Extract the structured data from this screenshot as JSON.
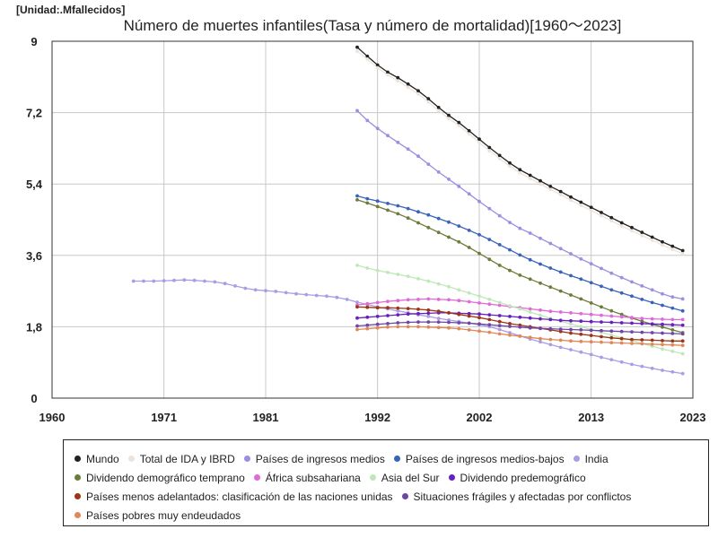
{
  "unit_label": "[Unidad:.Mfallecidos]",
  "chart_data": {
    "type": "line",
    "title": "Número de muertes infantiles(Tasa y número de mortalidad)[1960～2023]",
    "xlabel": "",
    "ylabel": "",
    "xlim": [
      1960,
      2023
    ],
    "ylim": [
      0,
      9
    ],
    "x_ticks": [
      1960,
      1971,
      1981,
      1992,
      2002,
      2013,
      2023
    ],
    "y_ticks": [
      0,
      1.8,
      3.6,
      5.4,
      7.2,
      9
    ],
    "y_tick_labels": [
      "0",
      "1,8",
      "3,6",
      "5,4",
      "7,2",
      "9"
    ],
    "grid": true,
    "legend_position": "bottom",
    "series": [
      {
        "name": "Mundo",
        "color": "#222222",
        "x_start": 1990,
        "x_end": 2022,
        "values": [
          8.85,
          8.62,
          8.4,
          8.22,
          8.08,
          7.92,
          7.75,
          7.55,
          7.33,
          7.13,
          6.95,
          6.74,
          6.53,
          6.32,
          6.12,
          5.93,
          5.76,
          5.62,
          5.48,
          5.34,
          5.21,
          5.07,
          4.94,
          4.81,
          4.68,
          4.55,
          4.42,
          4.3,
          4.18,
          4.06,
          3.94,
          3.83,
          3.72
        ]
      },
      {
        "name": "Total de IDA y IBRD",
        "color": "#ece4dc",
        "x_start": 1990,
        "x_end": 2022,
        "values": [
          8.75,
          8.55,
          8.33,
          8.15,
          8.0,
          7.84,
          7.67,
          7.47,
          7.25,
          7.05,
          6.87,
          6.66,
          6.45,
          6.24,
          6.04,
          5.85,
          5.68,
          5.54,
          5.4,
          5.26,
          5.13,
          4.99,
          4.86,
          4.73,
          4.6,
          4.47,
          4.34,
          4.22,
          4.1,
          3.98,
          3.86,
          3.75,
          3.64
        ]
      },
      {
        "name": "Países de ingresos medios",
        "color": "#9a8fe0",
        "x_start": 1990,
        "x_end": 2022,
        "values": [
          7.25,
          7.0,
          6.8,
          6.62,
          6.45,
          6.28,
          6.1,
          5.9,
          5.7,
          5.52,
          5.34,
          5.15,
          4.96,
          4.78,
          4.6,
          4.43,
          4.28,
          4.16,
          4.03,
          3.9,
          3.77,
          3.64,
          3.51,
          3.39,
          3.27,
          3.15,
          3.04,
          2.93,
          2.83,
          2.73,
          2.63,
          2.55,
          2.5
        ]
      },
      {
        "name": "Países de ingresos medios-bajos",
        "color": "#3a62b8",
        "x_start": 1990,
        "x_end": 2022,
        "values": [
          5.1,
          5.03,
          4.97,
          4.91,
          4.85,
          4.78,
          4.7,
          4.62,
          4.53,
          4.44,
          4.34,
          4.23,
          4.12,
          4.0,
          3.87,
          3.74,
          3.61,
          3.49,
          3.38,
          3.28,
          3.18,
          3.09,
          3.0,
          2.91,
          2.82,
          2.73,
          2.65,
          2.57,
          2.49,
          2.41,
          2.34,
          2.27,
          2.2
        ]
      },
      {
        "name": "India",
        "color": "#a89ee4",
        "x_start": 1968,
        "x_end": 2022,
        "values": [
          2.95,
          2.95,
          2.95,
          2.96,
          2.97,
          2.98,
          2.97,
          2.95,
          2.93,
          2.89,
          2.83,
          2.77,
          2.73,
          2.71,
          2.69,
          2.66,
          2.63,
          2.61,
          2.59,
          2.57,
          2.54,
          2.49,
          2.42,
          2.36,
          2.3,
          2.25,
          2.2,
          2.15,
          2.1,
          2.06,
          2.01,
          1.97,
          1.93,
          1.89,
          1.85,
          1.8,
          1.73,
          1.65,
          1.57,
          1.49,
          1.42,
          1.35,
          1.28,
          1.22,
          1.16,
          1.1,
          1.03,
          0.97,
          0.91,
          0.85,
          0.8,
          0.75,
          0.7,
          0.66,
          0.62
        ]
      },
      {
        "name": "Dividendo demográfico temprano",
        "color": "#6b7d3a",
        "x_start": 1990,
        "x_end": 2022,
        "values": [
          5.0,
          4.92,
          4.83,
          4.74,
          4.65,
          4.54,
          4.42,
          4.3,
          4.18,
          4.06,
          3.94,
          3.8,
          3.65,
          3.5,
          3.35,
          3.22,
          3.1,
          3.0,
          2.9,
          2.8,
          2.7,
          2.6,
          2.5,
          2.4,
          2.3,
          2.2,
          2.11,
          2.02,
          1.94,
          1.86,
          1.79,
          1.72,
          1.65
        ]
      },
      {
        "name": "África subsahariana",
        "color": "#e06ad8",
        "x_start": 1990,
        "x_end": 2022,
        "values": [
          2.35,
          2.38,
          2.41,
          2.44,
          2.46,
          2.48,
          2.49,
          2.5,
          2.49,
          2.48,
          2.46,
          2.43,
          2.4,
          2.37,
          2.34,
          2.31,
          2.28,
          2.25,
          2.22,
          2.19,
          2.17,
          2.15,
          2.13,
          2.11,
          2.09,
          2.07,
          2.05,
          2.03,
          2.01,
          2.0,
          1.99,
          1.98,
          1.98
        ]
      },
      {
        "name": "Asia del Sur",
        "color": "#bfe8b8",
        "x_start": 1990,
        "x_end": 2022,
        "values": [
          3.35,
          3.28,
          3.22,
          3.17,
          3.12,
          3.07,
          3.01,
          2.95,
          2.88,
          2.81,
          2.73,
          2.65,
          2.57,
          2.49,
          2.41,
          2.33,
          2.25,
          2.17,
          2.09,
          2.01,
          1.94,
          1.87,
          1.8,
          1.73,
          1.66,
          1.59,
          1.52,
          1.45,
          1.38,
          1.31,
          1.24,
          1.18,
          1.12
        ]
      },
      {
        "name": "Dividendo predemográfico",
        "color": "#6620c0",
        "x_start": 1990,
        "x_end": 2022,
        "values": [
          2.02,
          2.04,
          2.06,
          2.08,
          2.1,
          2.12,
          2.13,
          2.14,
          2.15,
          2.15,
          2.14,
          2.13,
          2.12,
          2.1,
          2.08,
          2.06,
          2.04,
          2.02,
          2.0,
          1.98,
          1.96,
          1.95,
          1.94,
          1.93,
          1.92,
          1.91,
          1.9,
          1.89,
          1.88,
          1.87,
          1.86,
          1.85,
          1.84
        ]
      },
      {
        "name": "Países menos adelantados: clasificación de las naciones unidas",
        "color": "#9c3415",
        "x_start": 1990,
        "x_end": 2022,
        "values": [
          2.3,
          2.29,
          2.28,
          2.28,
          2.27,
          2.26,
          2.24,
          2.22,
          2.19,
          2.15,
          2.11,
          2.07,
          2.03,
          1.98,
          1.93,
          1.88,
          1.84,
          1.8,
          1.76,
          1.72,
          1.68,
          1.64,
          1.61,
          1.58,
          1.55,
          1.52,
          1.5,
          1.48,
          1.47,
          1.46,
          1.45,
          1.44,
          1.44
        ]
      },
      {
        "name": "Situaciones frágiles y afectadas por conflictos",
        "color": "#6f45a6",
        "x_start": 1990,
        "x_end": 2022,
        "values": [
          1.82,
          1.84,
          1.86,
          1.88,
          1.9,
          1.91,
          1.92,
          1.92,
          1.92,
          1.91,
          1.9,
          1.89,
          1.87,
          1.85,
          1.83,
          1.81,
          1.79,
          1.77,
          1.76,
          1.75,
          1.74,
          1.73,
          1.72,
          1.71,
          1.7,
          1.69,
          1.68,
          1.67,
          1.66,
          1.65,
          1.64,
          1.63,
          1.62
        ]
      },
      {
        "name": "Países pobres muy endeudados",
        "color": "#e08858",
        "x_start": 1990,
        "x_end": 2022,
        "values": [
          1.73,
          1.75,
          1.77,
          1.79,
          1.8,
          1.8,
          1.8,
          1.79,
          1.78,
          1.77,
          1.75,
          1.72,
          1.69,
          1.66,
          1.62,
          1.59,
          1.56,
          1.53,
          1.5,
          1.48,
          1.46,
          1.44,
          1.43,
          1.42,
          1.41,
          1.4,
          1.39,
          1.38,
          1.37,
          1.36,
          1.35,
          1.34,
          1.33
        ]
      }
    ]
  }
}
